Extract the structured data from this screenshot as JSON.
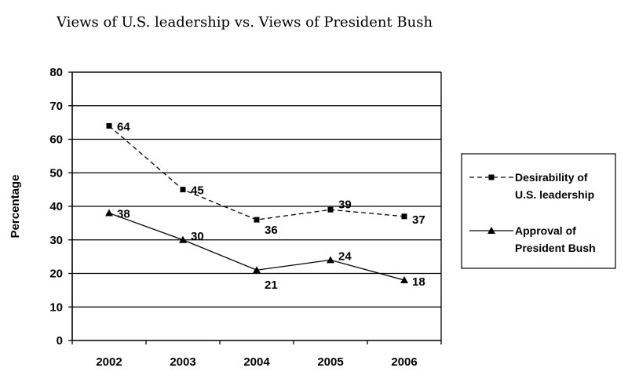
{
  "chart_data": {
    "type": "line",
    "title": "Views of U.S. leadership vs. Views of President Bush",
    "xlabel": "",
    "ylabel": "Percentage",
    "categories": [
      "2002",
      "2003",
      "2004",
      "2005",
      "2006"
    ],
    "ylim": [
      0,
      80
    ],
    "yticks": [
      0,
      10,
      20,
      30,
      40,
      50,
      60,
      70,
      80
    ],
    "grid": true,
    "legend_position": "right",
    "series": [
      {
        "name": "Desirability of U.S. leadership",
        "legend_lines": [
          "Desirability of",
          "U.S. leadership"
        ],
        "values": [
          64,
          45,
          36,
          39,
          37
        ],
        "marker": "square",
        "line_style": "dashed",
        "color": "#000000"
      },
      {
        "name": "Approval of President Bush",
        "legend_lines": [
          "Approval of",
          "President Bush"
        ],
        "values": [
          38,
          30,
          21,
          24,
          18
        ],
        "marker": "triangle",
        "line_style": "solid",
        "color": "#000000"
      }
    ]
  }
}
